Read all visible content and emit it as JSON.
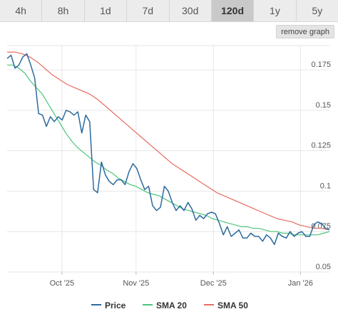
{
  "range_tabs": [
    {
      "label": "4h",
      "active": false
    },
    {
      "label": "8h",
      "active": false
    },
    {
      "label": "1d",
      "active": false
    },
    {
      "label": "7d",
      "active": false
    },
    {
      "label": "30d",
      "active": false
    },
    {
      "label": "120d",
      "active": true
    },
    {
      "label": "1y",
      "active": false
    },
    {
      "label": "5y",
      "active": false
    }
  ],
  "remove_button_label": "remove graph",
  "chart_data": {
    "type": "line",
    "title": "",
    "xlabel": "",
    "ylabel": "",
    "x_ticks": [
      "Oct '25",
      "Nov '25",
      "Dec '25",
      "Jan '26"
    ],
    "x_tick_positions": [
      0.17,
      0.4,
      0.64,
      0.91
    ],
    "y_ticks": [
      0.05,
      0.075,
      0.1,
      0.125,
      0.15,
      0.175
    ],
    "ylim": [
      0.05,
      0.19
    ],
    "grid": true,
    "legend_position": "bottom",
    "series": [
      {
        "name": "Price",
        "color": "#2b6a9e",
        "values": [
          0.182,
          0.184,
          0.176,
          0.178,
          0.183,
          0.185,
          0.178,
          0.17,
          0.148,
          0.147,
          0.14,
          0.146,
          0.143,
          0.146,
          0.144,
          0.15,
          0.149,
          0.147,
          0.149,
          0.136,
          0.147,
          0.143,
          0.101,
          0.099,
          0.118,
          0.11,
          0.106,
          0.104,
          0.107,
          0.107,
          0.104,
          0.112,
          0.117,
          0.114,
          0.107,
          0.101,
          0.103,
          0.091,
          0.088,
          0.09,
          0.103,
          0.1,
          0.093,
          0.088,
          0.091,
          0.088,
          0.093,
          0.089,
          0.082,
          0.085,
          0.083,
          0.086,
          0.087,
          0.086,
          0.08,
          0.073,
          0.078,
          0.072,
          0.074,
          0.076,
          0.071,
          0.071,
          0.074,
          0.072,
          0.072,
          0.069,
          0.073,
          0.071,
          0.067,
          0.074,
          0.072,
          0.071,
          0.075,
          0.072,
          0.074,
          0.075,
          0.072,
          0.072,
          0.079,
          0.081,
          0.08,
          0.077,
          0.076
        ]
      },
      {
        "name": "SMA 20",
        "color": "#4cc47a",
        "values": [
          0.178,
          0.178,
          0.176,
          0.173,
          0.168,
          0.164,
          0.16,
          0.154,
          0.148,
          0.142,
          0.136,
          0.131,
          0.127,
          0.124,
          0.121,
          0.118,
          0.116,
          0.113,
          0.111,
          0.108,
          0.106,
          0.104,
          0.103,
          0.101,
          0.099,
          0.098,
          0.097,
          0.095,
          0.093,
          0.091,
          0.089,
          0.088,
          0.087,
          0.086,
          0.085,
          0.083,
          0.082,
          0.081,
          0.08,
          0.079,
          0.078,
          0.078,
          0.077,
          0.077,
          0.076,
          0.075,
          0.075,
          0.074,
          0.074,
          0.073,
          0.073,
          0.073,
          0.073,
          0.073,
          0.074,
          0.075
        ]
      },
      {
        "name": "SMA 50",
        "color": "#e86a5f",
        "values": [
          0.186,
          0.186,
          0.185,
          0.183,
          0.18,
          0.176,
          0.172,
          0.169,
          0.166,
          0.164,
          0.162,
          0.16,
          0.157,
          0.153,
          0.149,
          0.145,
          0.141,
          0.137,
          0.133,
          0.129,
          0.125,
          0.121,
          0.117,
          0.114,
          0.111,
          0.108,
          0.105,
          0.102,
          0.099,
          0.097,
          0.095,
          0.093,
          0.091,
          0.089,
          0.087,
          0.085,
          0.083,
          0.082,
          0.081,
          0.079,
          0.078,
          0.077,
          0.077,
          0.076
        ]
      }
    ]
  }
}
